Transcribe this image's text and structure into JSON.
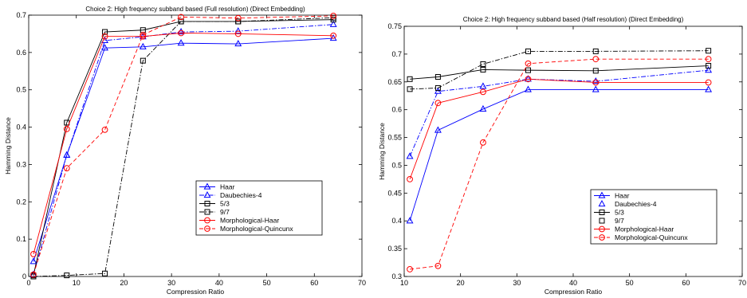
{
  "chart_data": [
    {
      "type": "line",
      "title": "Choice 2: High frequency subband based (Full resolution) (Direct Embedding)",
      "xlabel": "Compression Ratio",
      "ylabel": "Hamming Distance",
      "xlim": [
        0,
        70
      ],
      "ylim": [
        0,
        0.7
      ],
      "xticks": [
        "0",
        "10",
        "20",
        "30",
        "40",
        "50",
        "60",
        "70"
      ],
      "yticks": [
        "0",
        "0.1",
        "0.2",
        "0.3",
        "0.4",
        "0.5",
        "0.6",
        "0.7"
      ],
      "grid": false,
      "legend_position": "lower-right",
      "series": [
        {
          "name": "Haar",
          "color": "#0000ff",
          "dash": "solid",
          "marker": "triangle",
          "points": [
            [
              1,
              0.04
            ],
            [
              8,
              0.325
            ],
            [
              16,
              0.612
            ],
            [
              24,
              0.615
            ],
            [
              32,
              0.625
            ],
            [
              44,
              0.623
            ],
            [
              64,
              0.638
            ]
          ]
        },
        {
          "name": "Daubechies-4",
          "color": "#0000ff",
          "dash": "dashdot",
          "marker": "triangle",
          "points": [
            [
              1,
              0.005
            ],
            [
              8,
              0.325
            ],
            [
              16,
              0.632
            ],
            [
              24,
              0.642
            ],
            [
              32,
              0.655
            ],
            [
              44,
              0.657
            ],
            [
              64,
              0.675
            ]
          ]
        },
        {
          "name": "5/3",
          "color": "#000000",
          "dash": "solid",
          "marker": "square",
          "points": [
            [
              1,
              0.003
            ],
            [
              8,
              0.412
            ],
            [
              16,
              0.655
            ],
            [
              24,
              0.66
            ],
            [
              32,
              0.683
            ],
            [
              44,
              0.683
            ],
            [
              64,
              0.688
            ]
          ]
        },
        {
          "name": "9/7",
          "color": "#000000",
          "dash": "dashdot",
          "marker": "square",
          "points": [
            [
              1,
              0.0
            ],
            [
              8,
              0.003
            ],
            [
              16,
              0.008
            ],
            [
              24,
              0.578
            ],
            [
              32,
              0.683
            ],
            [
              44,
              0.683
            ],
            [
              64,
              0.693
            ]
          ]
        },
        {
          "name": "Morphological-Haar",
          "color": "#ff0000",
          "dash": "solid",
          "marker": "circle",
          "points": [
            [
              1,
              0.06
            ],
            [
              8,
              0.395
            ],
            [
              16,
              0.643
            ],
            [
              24,
              0.643
            ],
            [
              32,
              0.652
            ],
            [
              44,
              0.65
            ],
            [
              64,
              0.645
            ]
          ]
        },
        {
          "name": "Morphological-Quincunx",
          "color": "#ff0000",
          "dash": "dashed",
          "marker": "circle",
          "points": [
            [
              1,
              0.005
            ],
            [
              8,
              0.29
            ],
            [
              16,
              0.393
            ],
            [
              24,
              0.647
            ],
            [
              32,
              0.695
            ],
            [
              44,
              0.692
            ],
            [
              64,
              0.698
            ]
          ]
        }
      ]
    },
    {
      "type": "line",
      "title": "Choice 2: High frequency subband based (Half resolution) (Direct Embedding)",
      "xlabel": "Compression Ratio",
      "ylabel": "Hamming Distance",
      "xlim": [
        10,
        70
      ],
      "ylim": [
        0.3,
        0.75
      ],
      "xticks": [
        "10",
        "20",
        "30",
        "40",
        "50",
        "60",
        "70"
      ],
      "yticks": [
        "0.3",
        "0.35",
        "0.4",
        "0.45",
        "0.5",
        "0.55",
        "0.6",
        "0.65",
        "0.7",
        "0.75"
      ],
      "grid": false,
      "legend_position": "lower-right",
      "series": [
        {
          "name": "Haar",
          "color": "#0000ff",
          "dash": "solid",
          "marker": "triangle",
          "points": [
            [
              11,
              0.4
            ],
            [
              16,
              0.563
            ],
            [
              24,
              0.601
            ],
            [
              32,
              0.636
            ],
            [
              44,
              0.636
            ],
            [
              64,
              0.636
            ]
          ]
        },
        {
          "name": "Daubechies-4",
          "color": "#0000ff",
          "dash": "dashdot",
          "marker": "triangle",
          "points": [
            [
              11,
              0.516
            ],
            [
              16,
              0.633
            ],
            [
              24,
              0.642
            ],
            [
              32,
              0.655
            ],
            [
              44,
              0.651
            ],
            [
              64,
              0.671
            ]
          ]
        },
        {
          "name": "5/3",
          "color": "#000000",
          "dash": "solid",
          "marker": "square",
          "points": [
            [
              11,
              0.655
            ],
            [
              16,
              0.659
            ],
            [
              24,
              0.672
            ],
            [
              32,
              0.671
            ],
            [
              44,
              0.67
            ],
            [
              64,
              0.679
            ]
          ]
        },
        {
          "name": "9/7",
          "color": "#000000",
          "dash": "dashdot",
          "marker": "square",
          "points": [
            [
              11,
              0.637
            ],
            [
              16,
              0.639
            ],
            [
              24,
              0.682
            ],
            [
              32,
              0.705
            ],
            [
              44,
              0.705
            ],
            [
              64,
              0.706
            ]
          ]
        },
        {
          "name": "Morphological-Haar",
          "color": "#ff0000",
          "dash": "solid",
          "marker": "circle",
          "points": [
            [
              11,
              0.475
            ],
            [
              16,
              0.612
            ],
            [
              24,
              0.632
            ],
            [
              32,
              0.655
            ],
            [
              44,
              0.649
            ],
            [
              64,
              0.649
            ]
          ]
        },
        {
          "name": "Morphological-Quincunx",
          "color": "#ff0000",
          "dash": "dashed",
          "marker": "circle",
          "points": [
            [
              11,
              0.313
            ],
            [
              16,
              0.319
            ],
            [
              24,
              0.541
            ],
            [
              32,
              0.683
            ],
            [
              44,
              0.691
            ],
            [
              64,
              0.691
            ]
          ]
        }
      ]
    }
  ]
}
